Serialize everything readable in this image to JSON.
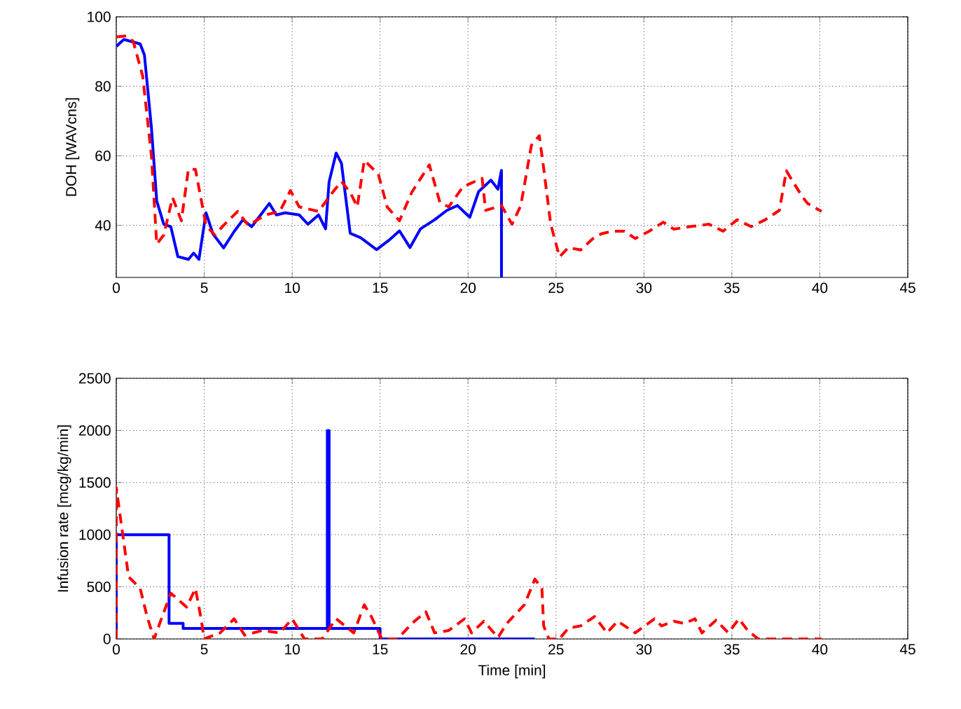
{
  "chart_data": [
    {
      "type": "line",
      "ylabel": "DOH [WAVcns]",
      "xlim": [
        0,
        45
      ],
      "ylim": [
        25,
        100
      ],
      "xticks": [
        0,
        5,
        10,
        15,
        20,
        25,
        30,
        35,
        40,
        45
      ],
      "yticks": [
        40,
        60,
        80,
        100
      ],
      "grid": true,
      "marker": "none",
      "series": [
        {
          "color": "#0000ff",
          "line_style": "solid",
          "x": [
            0,
            0.43,
            1.36,
            1.6,
            2.0,
            2.3,
            2.7,
            3.1,
            3.5,
            4.1,
            4.4,
            4.7,
            5.1,
            5.5,
            6.1,
            6.7,
            7.2,
            7.7,
            8.3,
            8.7,
            9.1,
            9.6,
            10.4,
            10.9,
            11.5,
            11.9,
            12.1,
            12.5,
            12.8,
            13.3,
            13.9,
            14.8,
            15.5,
            16.1,
            16.7,
            17.3,
            18.1,
            18.8,
            19.4,
            20.1,
            20.6,
            21.3,
            21.7,
            21.9,
            21.9
          ],
          "values": [
            91.5,
            93.5,
            92.2,
            89,
            68,
            47,
            40.3,
            39.6,
            31,
            30.2,
            32,
            30.2,
            43.6,
            37.5,
            33.5,
            38.2,
            41.6,
            39.6,
            43.6,
            46.3,
            43,
            43.6,
            43,
            40.3,
            43,
            39,
            52.5,
            60.8,
            57.9,
            37.7,
            36.4,
            33,
            35.7,
            38.4,
            33.6,
            39,
            41.6,
            44.3,
            45.7,
            42.3,
            49.7,
            53,
            50.4,
            55.8,
            25
          ]
        },
        {
          "color": "#ff0000",
          "line_style": "dashed",
          "x": [
            0,
            0.56,
            0.96,
            1.5,
            2.0,
            2.3,
            2.7,
            3.2,
            3.7,
            4.1,
            4.5,
            5.1,
            5.6,
            6.1,
            6.9,
            7.5,
            8.5,
            9.3,
            9.9,
            10.4,
            11.5,
            12.3,
            12.8,
            13.3,
            13.7,
            14.1,
            14.9,
            15.4,
            16.1,
            16.8,
            17.8,
            18.4,
            18.9,
            19.7,
            20.2,
            20.8,
            21.0,
            21.9,
            22.5,
            23.0,
            23.6,
            24.05,
            24.3,
            24.7,
            25.2,
            25.7,
            26.4,
            27.1,
            27.6,
            28.2,
            28.9,
            29.5,
            30.3,
            31.1,
            31.7,
            32.6,
            33.7,
            34.5,
            35.3,
            36.1,
            36.9,
            37.7,
            38.1,
            38.5,
            39.0,
            39.3,
            40.1
          ],
          "values": [
            94.2,
            94.5,
            93,
            83,
            60,
            34.6,
            37.2,
            48,
            41.3,
            56.1,
            56.1,
            40,
            37.2,
            40,
            44,
            40,
            43,
            44,
            50,
            45.3,
            44,
            49.5,
            52.6,
            49.5,
            45.3,
            58.7,
            54.7,
            45.3,
            41.3,
            49.5,
            57.4,
            46.6,
            45.3,
            51,
            52.2,
            53.5,
            44.3,
            45.7,
            40.3,
            45.7,
            63,
            65.8,
            56.4,
            40.3,
            30.9,
            33.6,
            32.9,
            36.2,
            37.6,
            38.3,
            38.3,
            36.2,
            38.3,
            40.9,
            38.9,
            39.6,
            40.3,
            38.3,
            41.6,
            39.6,
            41.6,
            44.3,
            55.7,
            52.3,
            48.3,
            46.3,
            44
          ]
        }
      ]
    },
    {
      "type": "line",
      "xlabel": "Time [min]",
      "ylabel": "Infusion rate [mcg/kg/min]",
      "xlim": [
        0,
        45
      ],
      "ylim": [
        0,
        2500
      ],
      "xticks": [
        0,
        5,
        10,
        15,
        20,
        25,
        30,
        35,
        40,
        45
      ],
      "yticks": [
        0,
        500,
        1000,
        1500,
        2000,
        2500
      ],
      "grid": true,
      "marker": "none",
      "series": [
        {
          "color": "#0000ff",
          "line_style": "solid",
          "x": [
            0,
            0,
            3,
            3,
            3.8,
            3.8,
            12,
            12,
            12.1,
            12.1,
            15,
            15,
            23.8
          ],
          "values": [
            0,
            1000,
            1000,
            150,
            150,
            100,
            100,
            2000,
            2000,
            100,
            100,
            0,
            0
          ]
        },
        {
          "color": "#ff0000",
          "line_style": "dashed",
          "x": [
            0,
            0,
            0.7,
            1.36,
            1.75,
            2.15,
            3.1,
            4.0,
            4.5,
            4.8,
            5.0,
            5.9,
            6.7,
            7.3,
            8.3,
            9.3,
            10.0,
            10.7,
            11.7,
            12.5,
            13.5,
            14.1,
            14.5,
            15.1,
            16,
            16.8,
            17.6,
            18.1,
            18.9,
            19.8,
            20.2,
            20.9,
            21.7,
            22.2,
            23.2,
            23.8,
            24.2,
            24.3,
            24.6,
            25.2,
            25.7,
            26.4,
            27.2,
            27.9,
            28.5,
            29.5,
            30.6,
            31.0,
            31.7,
            32.3,
            32.9,
            33.3,
            34.1,
            34.8,
            35.4,
            35.9,
            36.5,
            40.1
          ],
          "values": [
            0,
            1450,
            596,
            484,
            215,
            0,
            439,
            305,
            484,
            215,
            0,
            58,
            193,
            36,
            81,
            58,
            193,
            0,
            0,
            193,
            58,
            327,
            215,
            0,
            0,
            148,
            260,
            58,
            81,
            193,
            58,
            170,
            13,
            148,
            327,
            574,
            484,
            125,
            0,
            0,
            103,
            125,
            215,
            58,
            170,
            58,
            193,
            125,
            170,
            148,
            193,
            58,
            179,
            58,
            193,
            81,
            0,
            0
          ]
        }
      ]
    }
  ]
}
